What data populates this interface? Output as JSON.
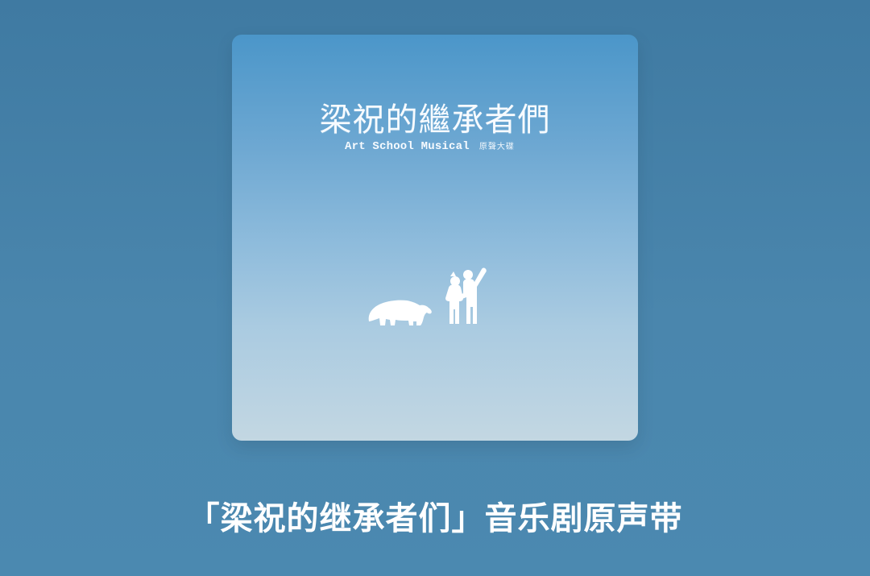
{
  "album": {
    "title": "梁祝的繼承者們",
    "subtitle": "Art School Musical",
    "subtitle_tag": "原聲大碟"
  },
  "caption": {
    "text": "「梁祝的继承者们」音乐剧原声带"
  },
  "colors": {
    "background": "#4481a9",
    "card_top": "#4b96c9",
    "card_bottom": "#c3d7e2",
    "text": "#ffffff"
  },
  "icons": {
    "bear": "bear-icon",
    "children": "children-icon"
  }
}
